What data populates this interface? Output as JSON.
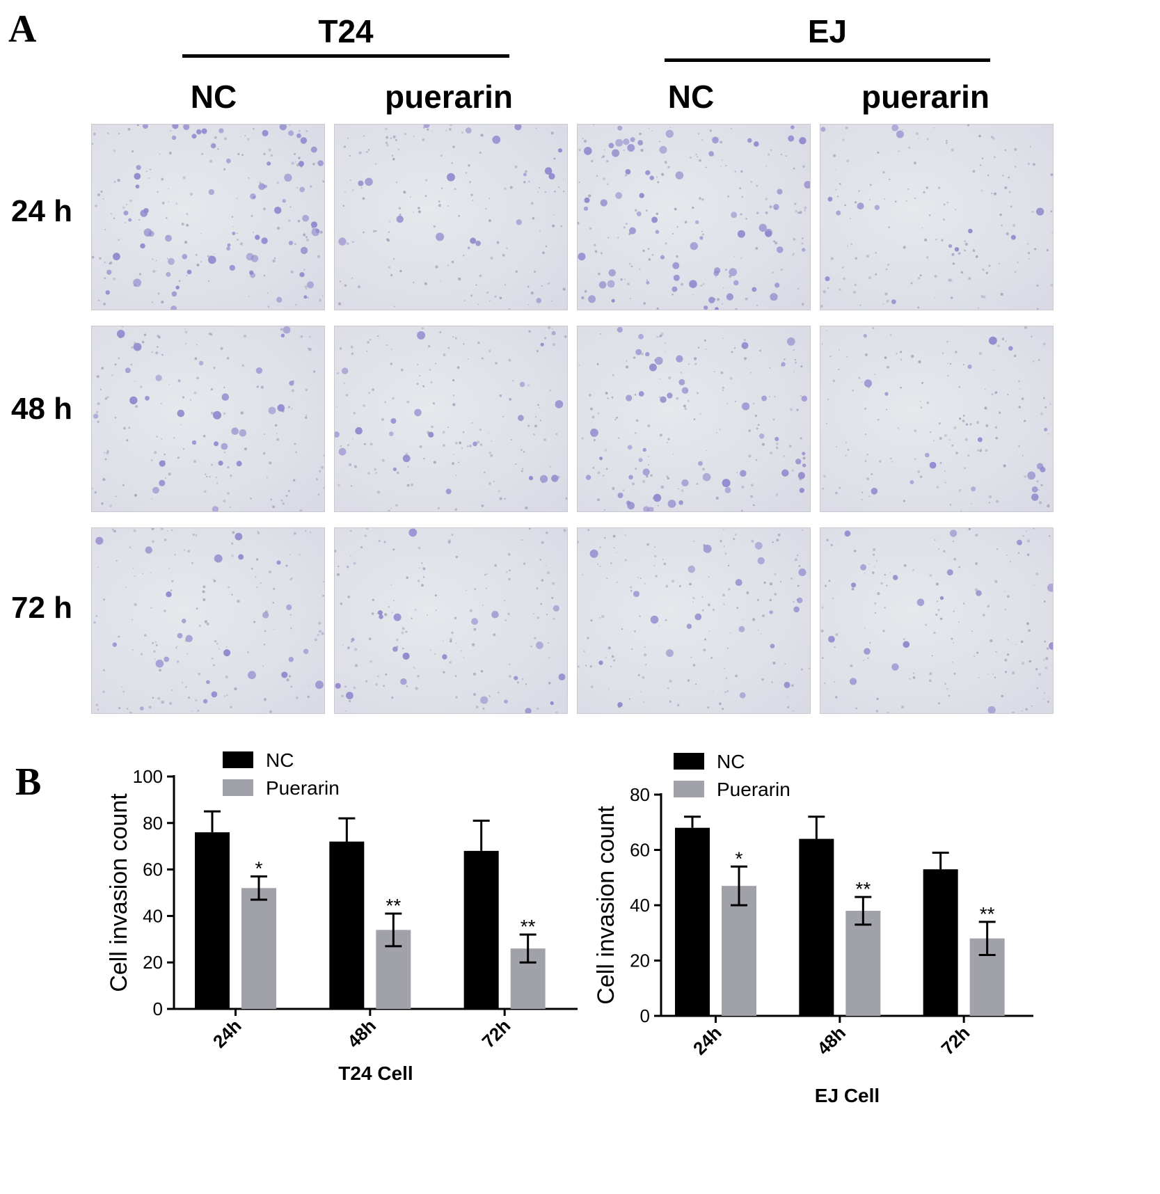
{
  "panel_a": {
    "letter": "A",
    "groups": [
      {
        "name": "T24",
        "columns": [
          "NC",
          "puerarin"
        ]
      },
      {
        "name": "EJ",
        "columns": [
          "NC",
          "puerarin"
        ]
      }
    ],
    "rows": [
      "24 h",
      "48 h",
      "72 h"
    ],
    "cell_color": "#8f86cc",
    "relative_density": [
      [
        1.0,
        0.25,
        0.95,
        0.2
      ],
      [
        0.4,
        0.3,
        0.7,
        0.25
      ],
      [
        0.35,
        0.3,
        0.3,
        0.25
      ]
    ]
  },
  "panel_b": {
    "letter": "B"
  },
  "colors": {
    "nc": "#000000",
    "puerarin": "#a1a1aa"
  },
  "chart_data": [
    {
      "type": "bar",
      "title": "",
      "xlabel": "T24 Cell",
      "ylabel": "Cell invasion count",
      "categories": [
        "24h",
        "48h",
        "72h"
      ],
      "ylim": [
        0,
        100
      ],
      "yticks": [
        "0",
        "20",
        "40",
        "60",
        "80",
        "100"
      ],
      "series": [
        {
          "name": "NC",
          "values": [
            76,
            72,
            68
          ],
          "errors": [
            9,
            10,
            13
          ],
          "marks": [
            "",
            "",
            ""
          ]
        },
        {
          "name": "Puerarin",
          "values": [
            52,
            34,
            26
          ],
          "errors": [
            5,
            7,
            6
          ],
          "marks": [
            "*",
            "**",
            "**"
          ]
        }
      ],
      "legend": "top-left"
    },
    {
      "type": "bar",
      "title": "",
      "xlabel": "EJ Cell",
      "ylabel": "Cell invasion count",
      "categories": [
        "24h",
        "48h",
        "72h"
      ],
      "ylim": [
        0,
        80
      ],
      "yticks": [
        "0",
        "20",
        "40",
        "60",
        "80"
      ],
      "series": [
        {
          "name": "NC",
          "values": [
            68,
            64,
            53
          ],
          "errors": [
            4,
            8,
            6
          ],
          "marks": [
            "",
            "",
            ""
          ]
        },
        {
          "name": "Puerarin",
          "values": [
            47,
            38,
            28
          ],
          "errors": [
            7,
            5,
            6
          ],
          "marks": [
            "*",
            "**",
            "**"
          ]
        }
      ],
      "legend": "top-left"
    }
  ]
}
